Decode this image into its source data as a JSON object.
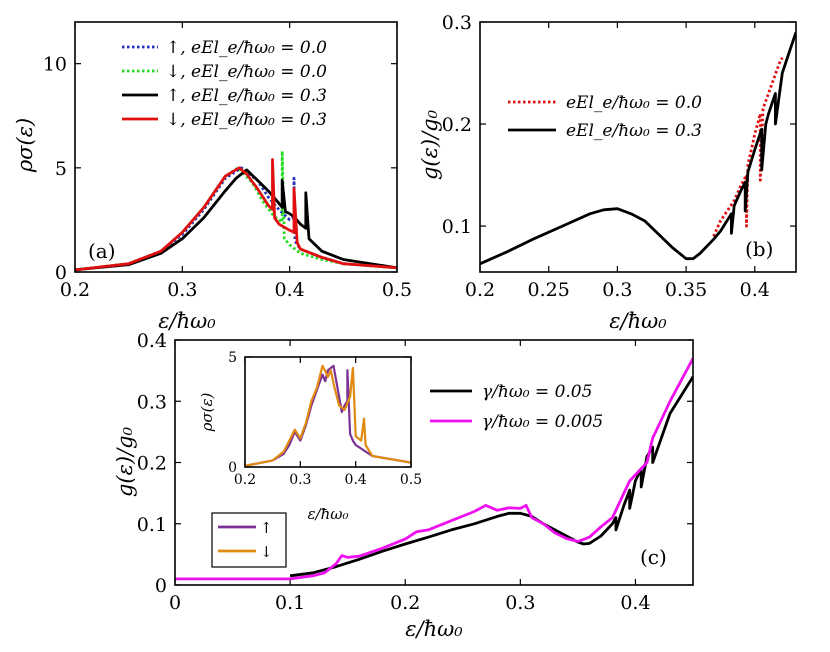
{
  "chart_data": [
    {
      "id": "a",
      "type": "line",
      "panel_label": "(a)",
      "xlabel": "ε/ħω₀",
      "ylabel": "ρσ(ε)",
      "xlim": [
        0.2,
        0.5
      ],
      "ylim": [
        0,
        12
      ],
      "xticks": [
        "0.2",
        "0.3",
        "0.4",
        "0.5"
      ],
      "yticks": [
        "0",
        "5",
        "10"
      ],
      "xtick_values": [
        0.2,
        0.3,
        0.4,
        0.5
      ],
      "ytick_values": [
        0,
        5,
        10
      ],
      "legend_position": "top-right",
      "series": [
        {
          "name": "↑, eEl_e/ħω₀ = 0.0",
          "color": "#1f2fbf",
          "style": "dotted",
          "x": [
            0.2,
            0.25,
            0.28,
            0.3,
            0.32,
            0.34,
            0.355,
            0.37,
            0.38,
            0.39,
            0.4,
            0.404,
            0.404,
            0.405,
            0.41,
            0.43,
            0.45,
            0.5
          ],
          "y": [
            0.1,
            0.4,
            1.0,
            1.8,
            3.0,
            4.5,
            5.0,
            4.4,
            3.6,
            3.0,
            2.5,
            2.6,
            4.5,
            1.5,
            1.1,
            0.7,
            0.4,
            0.2
          ]
        },
        {
          "name": "↓, eEl_e/ħω₀ = 0.0",
          "color": "#22dd22",
          "style": "dotted",
          "x": [
            0.2,
            0.25,
            0.28,
            0.3,
            0.32,
            0.34,
            0.352,
            0.365,
            0.375,
            0.385,
            0.393,
            0.393,
            0.395,
            0.4,
            0.41,
            0.43,
            0.45,
            0.5
          ],
          "y": [
            0.1,
            0.4,
            1.0,
            1.9,
            3.1,
            4.6,
            5.0,
            4.3,
            3.4,
            2.7,
            2.4,
            5.8,
            1.6,
            1.3,
            0.9,
            0.6,
            0.4,
            0.2
          ]
        },
        {
          "name": "↑, eEl_e/ħω₀ = 0.3",
          "color": "#000000",
          "style": "solid",
          "x": [
            0.2,
            0.25,
            0.28,
            0.3,
            0.32,
            0.34,
            0.35,
            0.36,
            0.37,
            0.38,
            0.385,
            0.39,
            0.393,
            0.393,
            0.396,
            0.4,
            0.405,
            0.41,
            0.415,
            0.415,
            0.418,
            0.43,
            0.45,
            0.5
          ],
          "y": [
            0.1,
            0.35,
            0.9,
            1.6,
            2.6,
            3.9,
            4.5,
            4.9,
            4.4,
            3.9,
            3.6,
            3.3,
            3.1,
            4.4,
            2.9,
            2.8,
            2.6,
            2.3,
            2.1,
            3.8,
            1.6,
            1.0,
            0.6,
            0.2
          ]
        },
        {
          "name": "↓, eEl_e/ħω₀ = 0.3",
          "color": "#e01010",
          "style": "solid",
          "x": [
            0.2,
            0.25,
            0.28,
            0.3,
            0.32,
            0.34,
            0.353,
            0.36,
            0.37,
            0.38,
            0.384,
            0.384,
            0.386,
            0.39,
            0.4,
            0.404,
            0.404,
            0.407,
            0.41,
            0.43,
            0.45,
            0.5
          ],
          "y": [
            0.1,
            0.4,
            1.0,
            1.9,
            3.1,
            4.6,
            5.0,
            4.7,
            4.0,
            3.2,
            3.0,
            5.4,
            2.6,
            2.3,
            2.0,
            1.9,
            4.0,
            1.4,
            1.1,
            0.7,
            0.4,
            0.2
          ]
        }
      ]
    },
    {
      "id": "b",
      "type": "line",
      "panel_label": "(b)",
      "xlabel": "ε/ħω₀",
      "ylabel": "g(ε)/g₀",
      "xlim": [
        0.2,
        0.43
      ],
      "ylim": [
        0.055,
        0.3
      ],
      "xticks": [
        "0.2",
        "0.25",
        "0.3",
        "0.35",
        "0.4"
      ],
      "yticks": [
        "0.1",
        "0.2",
        "0.3"
      ],
      "xtick_values": [
        0.2,
        0.25,
        0.3,
        0.35,
        0.4
      ],
      "ytick_values": [
        0.1,
        0.2,
        0.3
      ],
      "legend_position": "upper-left",
      "series": [
        {
          "name": "eEl_e/ħω₀ = 0.0",
          "color": "#e01010",
          "style": "dotted",
          "x": [
            0.37,
            0.375,
            0.38,
            0.385,
            0.39,
            0.394,
            0.394,
            0.395,
            0.4,
            0.404,
            0.404,
            0.406,
            0.41,
            0.414,
            0.418,
            0.42
          ],
          "y": [
            0.09,
            0.105,
            0.115,
            0.125,
            0.14,
            0.15,
            0.1,
            0.16,
            0.19,
            0.21,
            0.145,
            0.215,
            0.23,
            0.245,
            0.26,
            0.265
          ]
        },
        {
          "name": "eEl_e/ħω₀ = 0.3",
          "color": "#000000",
          "style": "solid",
          "x": [
            0.2,
            0.22,
            0.24,
            0.26,
            0.28,
            0.29,
            0.3,
            0.31,
            0.32,
            0.33,
            0.34,
            0.35,
            0.355,
            0.36,
            0.37,
            0.375,
            0.383,
            0.383,
            0.385,
            0.39,
            0.393,
            0.393,
            0.395,
            0.4,
            0.405,
            0.405,
            0.408,
            0.41,
            0.415,
            0.415,
            0.42,
            0.425,
            0.43
          ],
          "y": [
            0.063,
            0.075,
            0.088,
            0.1,
            0.112,
            0.116,
            0.117,
            0.112,
            0.105,
            0.092,
            0.079,
            0.068,
            0.068,
            0.073,
            0.087,
            0.095,
            0.112,
            0.093,
            0.12,
            0.135,
            0.143,
            0.115,
            0.153,
            0.175,
            0.195,
            0.155,
            0.2,
            0.21,
            0.23,
            0.2,
            0.25,
            0.27,
            0.29
          ]
        }
      ]
    },
    {
      "id": "c",
      "type": "line",
      "panel_label": "(c)",
      "xlabel": "ε/ħω₀",
      "ylabel": "g(ε)/g₀",
      "xlim": [
        0,
        0.45
      ],
      "ylim": [
        0,
        0.4
      ],
      "xticks": [
        "0",
        "0.1",
        "0.2",
        "0.3",
        "0.4"
      ],
      "yticks": [
        "0",
        "0.1",
        "0.2",
        "0.3",
        "0.4"
      ],
      "xtick_values": [
        0,
        0.1,
        0.2,
        0.3,
        0.4
      ],
      "ytick_values": [
        0,
        0.1,
        0.2,
        0.3,
        0.4
      ],
      "legend_position": "top-right",
      "series": [
        {
          "name": "γ/ħω₀ = 0.05",
          "color": "#000000",
          "style": "solid",
          "x": [
            0.1,
            0.12,
            0.14,
            0.16,
            0.18,
            0.2,
            0.22,
            0.24,
            0.26,
            0.28,
            0.29,
            0.3,
            0.31,
            0.32,
            0.33,
            0.34,
            0.35,
            0.355,
            0.36,
            0.37,
            0.38,
            0.383,
            0.383,
            0.39,
            0.395,
            0.395,
            0.4,
            0.405,
            0.405,
            0.41,
            0.415,
            0.415,
            0.43,
            0.45
          ],
          "y": [
            0.015,
            0.02,
            0.03,
            0.042,
            0.055,
            0.067,
            0.078,
            0.09,
            0.1,
            0.112,
            0.117,
            0.117,
            0.112,
            0.1,
            0.09,
            0.08,
            0.07,
            0.067,
            0.068,
            0.08,
            0.1,
            0.11,
            0.09,
            0.13,
            0.155,
            0.125,
            0.17,
            0.19,
            0.16,
            0.21,
            0.225,
            0.2,
            0.28,
            0.34
          ]
        },
        {
          "name": "γ/ħω₀ = 0.005",
          "color": "#ee10ee",
          "style": "solid",
          "x": [
            0,
            0.1,
            0.12,
            0.13,
            0.14,
            0.145,
            0.15,
            0.16,
            0.18,
            0.2,
            0.21,
            0.22,
            0.24,
            0.26,
            0.27,
            0.28,
            0.29,
            0.3,
            0.305,
            0.31,
            0.32,
            0.33,
            0.34,
            0.35,
            0.36,
            0.37,
            0.38,
            0.385,
            0.39,
            0.395,
            0.4,
            0.41,
            0.415,
            0.42,
            0.43,
            0.45
          ],
          "y": [
            0.01,
            0.01,
            0.015,
            0.02,
            0.035,
            0.048,
            0.045,
            0.047,
            0.06,
            0.075,
            0.087,
            0.09,
            0.105,
            0.12,
            0.13,
            0.122,
            0.126,
            0.125,
            0.13,
            0.11,
            0.1,
            0.085,
            0.076,
            0.071,
            0.078,
            0.095,
            0.11,
            0.13,
            0.15,
            0.17,
            0.18,
            0.2,
            0.24,
            0.26,
            0.3,
            0.37
          ]
        }
      ],
      "inset": {
        "type": "line",
        "xlabel": "ε/ħω₀",
        "ylabel": "ρσ(ε)",
        "xlim": [
          0.2,
          0.5
        ],
        "ylim": [
          0,
          5
        ],
        "xticks": [
          "0.2",
          "0.3",
          "0.4",
          "0.5"
        ],
        "yticks": [
          "0",
          "5"
        ],
        "xtick_values": [
          0.2,
          0.3,
          0.4,
          0.5
        ],
        "ytick_values": [
          0,
          5
        ],
        "legend_position": "bottom-left",
        "series": [
          {
            "name": "↑",
            "color": "#7b3294",
            "style": "solid",
            "x": [
              0.2,
              0.25,
              0.27,
              0.28,
              0.29,
              0.3,
              0.31,
              0.32,
              0.33,
              0.34,
              0.345,
              0.35,
              0.36,
              0.37,
              0.375,
              0.38,
              0.385,
              0.385,
              0.39,
              0.395,
              0.4,
              0.43,
              0.5
            ],
            "y": [
              0.05,
              0.3,
              0.6,
              1.0,
              1.6,
              1.2,
              1.9,
              2.8,
              3.5,
              4.2,
              3.9,
              4.4,
              4.6,
              3.2,
              2.5,
              2.8,
              3.0,
              4.4,
              1.5,
              1.2,
              1.0,
              0.5,
              0.2
            ]
          },
          {
            "name": "↓",
            "color": "#e08a10",
            "style": "solid",
            "x": [
              0.2,
              0.25,
              0.27,
              0.28,
              0.29,
              0.3,
              0.31,
              0.32,
              0.33,
              0.34,
              0.35,
              0.355,
              0.36,
              0.37,
              0.38,
              0.385,
              0.39,
              0.395,
              0.4,
              0.41,
              0.415,
              0.418,
              0.43,
              0.5
            ],
            "y": [
              0.05,
              0.3,
              0.7,
              1.2,
              1.7,
              1.3,
              2.0,
              3.0,
              3.6,
              4.6,
              4.1,
              4.4,
              3.8,
              2.8,
              2.6,
              2.9,
              3.2,
              4.5,
              1.4,
              1.2,
              2.2,
              1.0,
              0.5,
              0.2
            ]
          }
        ]
      }
    }
  ]
}
